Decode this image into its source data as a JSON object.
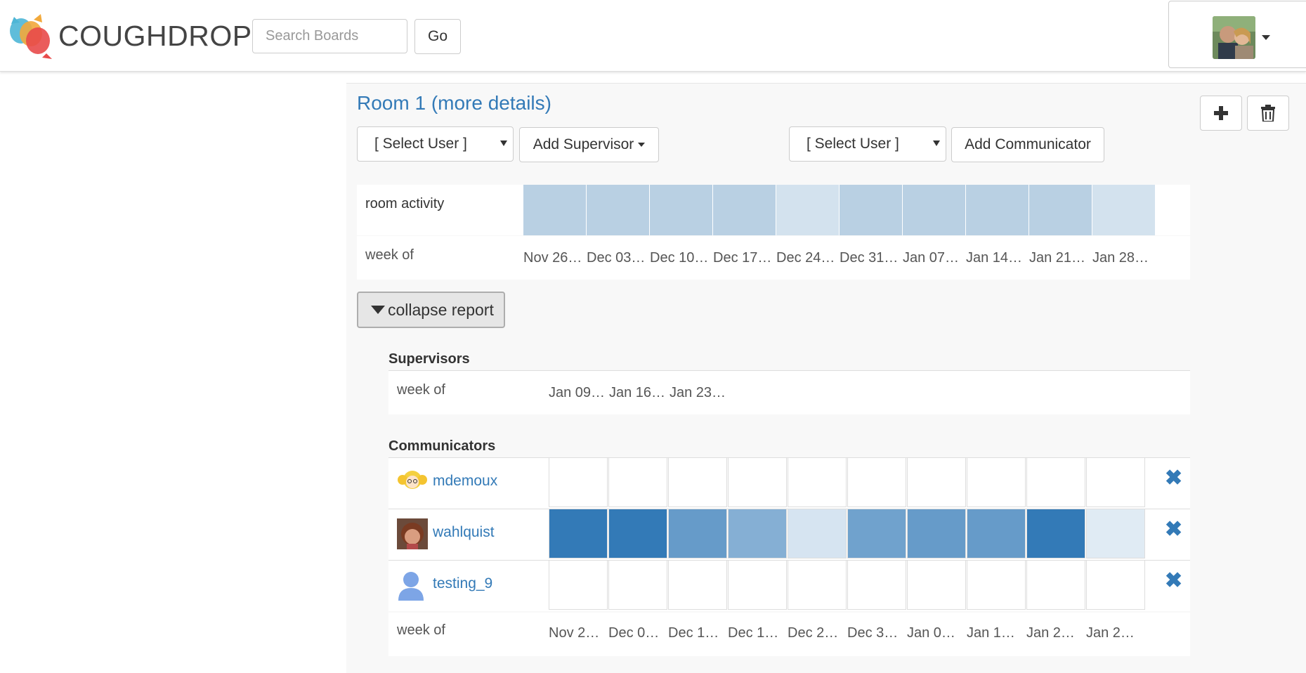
{
  "header": {
    "brand": "COUGHDROP",
    "search_placeholder": "Search Boards",
    "go_label": "Go"
  },
  "room": {
    "title": "Room 1 (more details)",
    "supervisor_select": "[ Select User ]",
    "add_supervisor": "Add Supervisor",
    "communicator_select": "[ Select User ]",
    "add_communicator": "Add Communicator",
    "activity_label": "room activity",
    "week_of_label": "week of",
    "activity_weeks": [
      "Nov 26…",
      "Dec 03…",
      "Dec 10…",
      "Dec 17…",
      "Dec 24…",
      "Dec 31…",
      "Jan 07…",
      "Jan 14…",
      "Jan 21…",
      "Jan 28…"
    ],
    "activity_levels": [
      0.6,
      0.6,
      0.6,
      0.6,
      0.35,
      0.6,
      0.6,
      0.6,
      0.6,
      0.35
    ],
    "collapse_label": "collapse report"
  },
  "supervisors": {
    "title": "Supervisors",
    "week_of_label": "week of",
    "weeks": [
      "Jan 09…",
      "Jan 16…",
      "Jan 23…"
    ]
  },
  "communicators": {
    "title": "Communicators",
    "week_of_label": "week of",
    "weeks": [
      "Nov 2…",
      "Dec 0…",
      "Dec 1…",
      "Dec 1…",
      "Dec 2…",
      "Dec 3…",
      "Jan 0…",
      "Jan 1…",
      "Jan 2…",
      "Jan 2…"
    ],
    "users": [
      {
        "name": "mdemoux",
        "levels": [
          0,
          0,
          0,
          0,
          0,
          0,
          0,
          0,
          0,
          0
        ]
      },
      {
        "name": "wahlquist",
        "levels": [
          1.0,
          1.0,
          0.75,
          0.6,
          0.2,
          0.7,
          0.75,
          0.75,
          1.0,
          0.15
        ]
      },
      {
        "name": "testing_9",
        "levels": [
          0,
          0,
          0,
          0,
          0,
          0,
          0,
          0,
          0,
          0
        ]
      }
    ]
  },
  "colors": {
    "accent": "#337ab7",
    "activity_strong": "#b9d0e3",
    "activity_light": "#d3e2ee",
    "cell_border": "#dddddd"
  },
  "icons": [
    "coughdrop-logo-icon",
    "chevron-down-icon",
    "plus-icon",
    "trash-icon",
    "triangle-down-icon",
    "remove-x-icon",
    "user-avatar-icon"
  ]
}
